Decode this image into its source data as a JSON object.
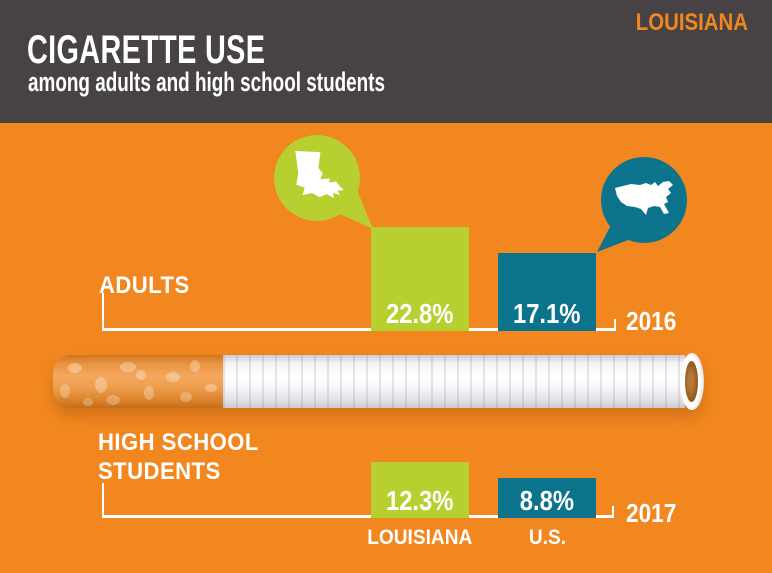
{
  "header": {
    "brand": "LOUISIANA",
    "title": "CIGARETTE USE",
    "subtitle": "among adults and high school students"
  },
  "colors": {
    "background": "#F2871F",
    "header_bg": "#474344",
    "brand_text": "#F2871F",
    "louisiana_green": "#B7CF2F",
    "us_teal": "#0B748C",
    "text_white": "#FFFFFF"
  },
  "axis": {
    "categories": [
      "LOUISIANA",
      "U.S."
    ]
  },
  "chart_data": [
    {
      "type": "bar",
      "section_label": "ADULTS",
      "year": "2016",
      "categories": [
        "LOUISIANA",
        "U.S."
      ],
      "values": [
        22.8,
        17.1
      ],
      "value_labels": [
        "22.8%",
        "17.1%"
      ],
      "series_colors": [
        "#B7CF2F",
        "#0B748C"
      ],
      "legend_icons": [
        "louisiana-state-bubble",
        "us-map-bubble"
      ]
    },
    {
      "type": "bar",
      "section_label": "HIGH SCHOOL STUDENTS",
      "section_label_lines": [
        "HIGH SCHOOL",
        "STUDENTS"
      ],
      "year": "2017",
      "categories": [
        "LOUISIANA",
        "U.S."
      ],
      "values": [
        12.3,
        8.8
      ],
      "value_labels": [
        "12.3%",
        "8.8%"
      ],
      "series_colors": [
        "#B7CF2F",
        "#0B748C"
      ]
    }
  ]
}
